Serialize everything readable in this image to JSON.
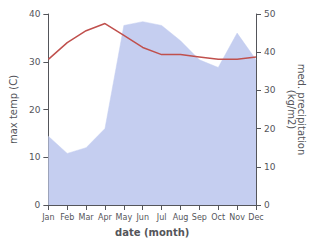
{
  "chart_data": {
    "type": "line",
    "categories": [
      "Jan",
      "Feb",
      "Mar",
      "Apr",
      "May",
      "Jun",
      "Jul",
      "Aug",
      "Sep",
      "Oct",
      "Nov",
      "Dec"
    ],
    "series": [
      {
        "type": "area",
        "color": "#c5cef0",
        "axis": "y2",
        "values": [
          18.0,
          13.5,
          15.0,
          20.0,
          47.0,
          48.0,
          47.0,
          43.0,
          38.0,
          36.0,
          45.0,
          38.0
        ]
      },
      {
        "type": "line",
        "color": "#c0504d",
        "axis": "y",
        "values": [
          30.5,
          34.0,
          36.5,
          38.0,
          35.5,
          33.0,
          31.5,
          31.5,
          31.0,
          30.5,
          30.5,
          31.0
        ]
      }
    ],
    "xlabel": "date (month)",
    "ylabel": "max temp (C)",
    "y2label": "med. precipitation\n(kg/m2)",
    "ylim": [
      0,
      40
    ],
    "yticks": [
      0,
      10,
      20,
      30,
      40
    ],
    "y2lim": [
      0,
      50
    ],
    "y2ticks": [
      0,
      10,
      20,
      30,
      40,
      50
    ],
    "grid": false
  }
}
